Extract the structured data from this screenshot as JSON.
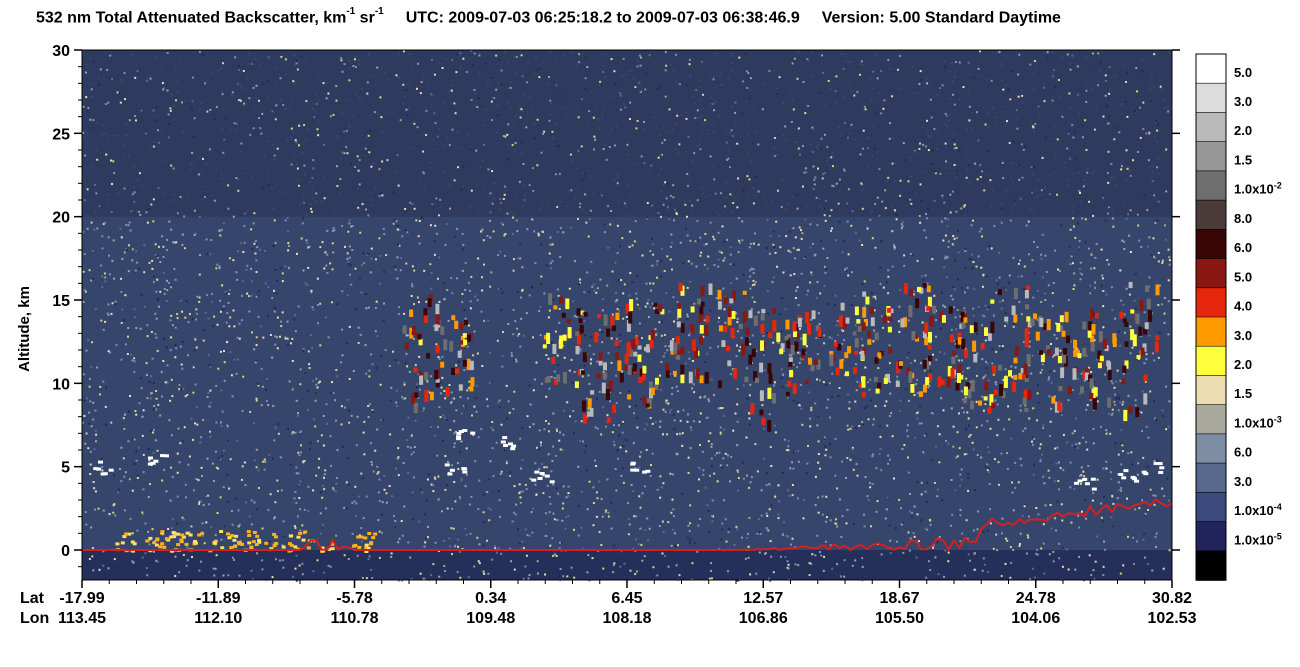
{
  "title": {
    "prefix": "532 nm Total Attenuated Backscatter, km",
    "sup1": "-1",
    "mid": " sr",
    "sup2": "-1",
    "utc": "UTC:  2009-07-03 06:25:18.2  to  2009-07-03 06:38:46.9",
    "version": "Version: 5.00  Standard  Daytime"
  },
  "chart_data": {
    "type": "heatmap",
    "ylabel": "Altitude, km",
    "ylim": [
      -1.8,
      30
    ],
    "yticks": [
      0,
      5,
      10,
      15,
      20,
      25,
      30
    ],
    "x_axis": {
      "row_labels": [
        "Lat",
        "Lon"
      ],
      "lat": [
        "-17.99",
        "-11.89",
        "-5.78",
        "0.34",
        "6.45",
        "12.57",
        "18.67",
        "24.78",
        "30.82"
      ],
      "lon": [
        "113.45",
        "112.10",
        "110.78",
        "109.48",
        "108.18",
        "106.86",
        "105.50",
        "104.06",
        "102.53"
      ]
    },
    "colorbar": {
      "levels": [
        {
          "base": "5.0",
          "exp": "",
          "color": "#ffffff"
        },
        {
          "base": "3.0",
          "exp": "",
          "color": "#dcdcdc"
        },
        {
          "base": "2.0",
          "exp": "",
          "color": "#b9b9b9"
        },
        {
          "base": "1.5",
          "exp": "",
          "color": "#969696"
        },
        {
          "base": "1.0x10",
          "exp": "-2",
          "color": "#6e6e6e"
        },
        {
          "base": "8.0",
          "exp": "",
          "color": "#4b3c39"
        },
        {
          "base": "6.0",
          "exp": "",
          "color": "#3a0605"
        },
        {
          "base": "5.0",
          "exp": "",
          "color": "#8a1711"
        },
        {
          "base": "4.0",
          "exp": "",
          "color": "#e8260c"
        },
        {
          "base": "3.0",
          "exp": "",
          "color": "#ff9b00"
        },
        {
          "base": "2.0",
          "exp": "",
          "color": "#ffff3c"
        },
        {
          "base": "1.5",
          "exp": "",
          "color": "#ecdcb0"
        },
        {
          "base": "1.0x10",
          "exp": "-3",
          "color": "#a8a99c"
        },
        {
          "base": "6.0",
          "exp": "",
          "color": "#7d8da3"
        },
        {
          "base": "3.0",
          "exp": "",
          "color": "#56698c"
        },
        {
          "base": "1.0x10",
          "exp": "-4",
          "color": "#3a4a7c"
        },
        {
          "base": "1.0x10",
          "exp": "-5",
          "color": "#21235c"
        },
        {
          "base": "",
          "exp": "",
          "color": "#000000"
        }
      ]
    },
    "features": {
      "surface_altitude_km": 0,
      "surface_line_color": "#d42020",
      "high_cloud_band_km": [
        8,
        17
      ],
      "low_cloud_km": [
        3,
        7
      ],
      "boundary_layer_km": [
        0,
        1
      ]
    }
  }
}
